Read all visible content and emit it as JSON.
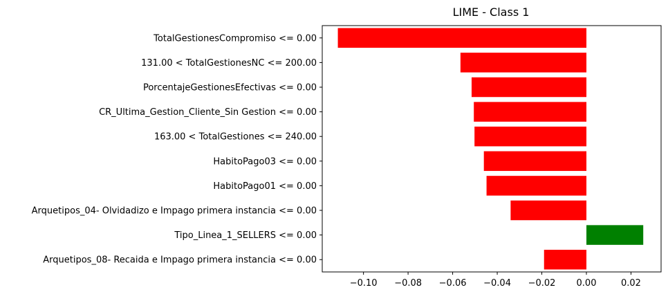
{
  "chart_data": {
    "type": "bar",
    "orientation": "horizontal",
    "title": "LIME - Class 1",
    "xlabel": "",
    "ylabel": "",
    "xlim": [
      -0.1185,
      0.0335
    ],
    "xticks": [
      -0.1,
      -0.08,
      -0.06,
      -0.04,
      -0.02,
      0.0,
      0.02
    ],
    "xtick_labels": [
      "−0.10",
      "−0.08",
      "−0.06",
      "−0.04",
      "−0.02",
      "0.00",
      "0.02"
    ],
    "grid": false,
    "legend": "none",
    "categories": [
      "TotalGestionesCompromiso <= 0.00",
      "131.00 < TotalGestionesNC <= 200.00",
      "PorcentajeGestionesEfectivas <= 0.00",
      "CR_Ultima_Gestion_Cliente_Sin Gestion <= 0.00",
      "163.00 < TotalGestiones <= 240.00",
      "HabitoPago03 <= 0.00",
      "HabitoPago01 <= 0.00",
      "Arquetipos_04- Olvidadizo e Impago primera instancia <= 0.00",
      "Tipo_Linea_1_SELLERS <= 0.00",
      "Arquetipos_08- Recaida e Impago primera instancia <= 0.00"
    ],
    "values": [
      -0.1115,
      -0.0565,
      -0.0515,
      -0.0505,
      -0.0502,
      -0.046,
      -0.0448,
      -0.034,
      0.0255,
      -0.019
    ],
    "colors": {
      "negative": "#ff0000",
      "positive": "#008000"
    }
  }
}
